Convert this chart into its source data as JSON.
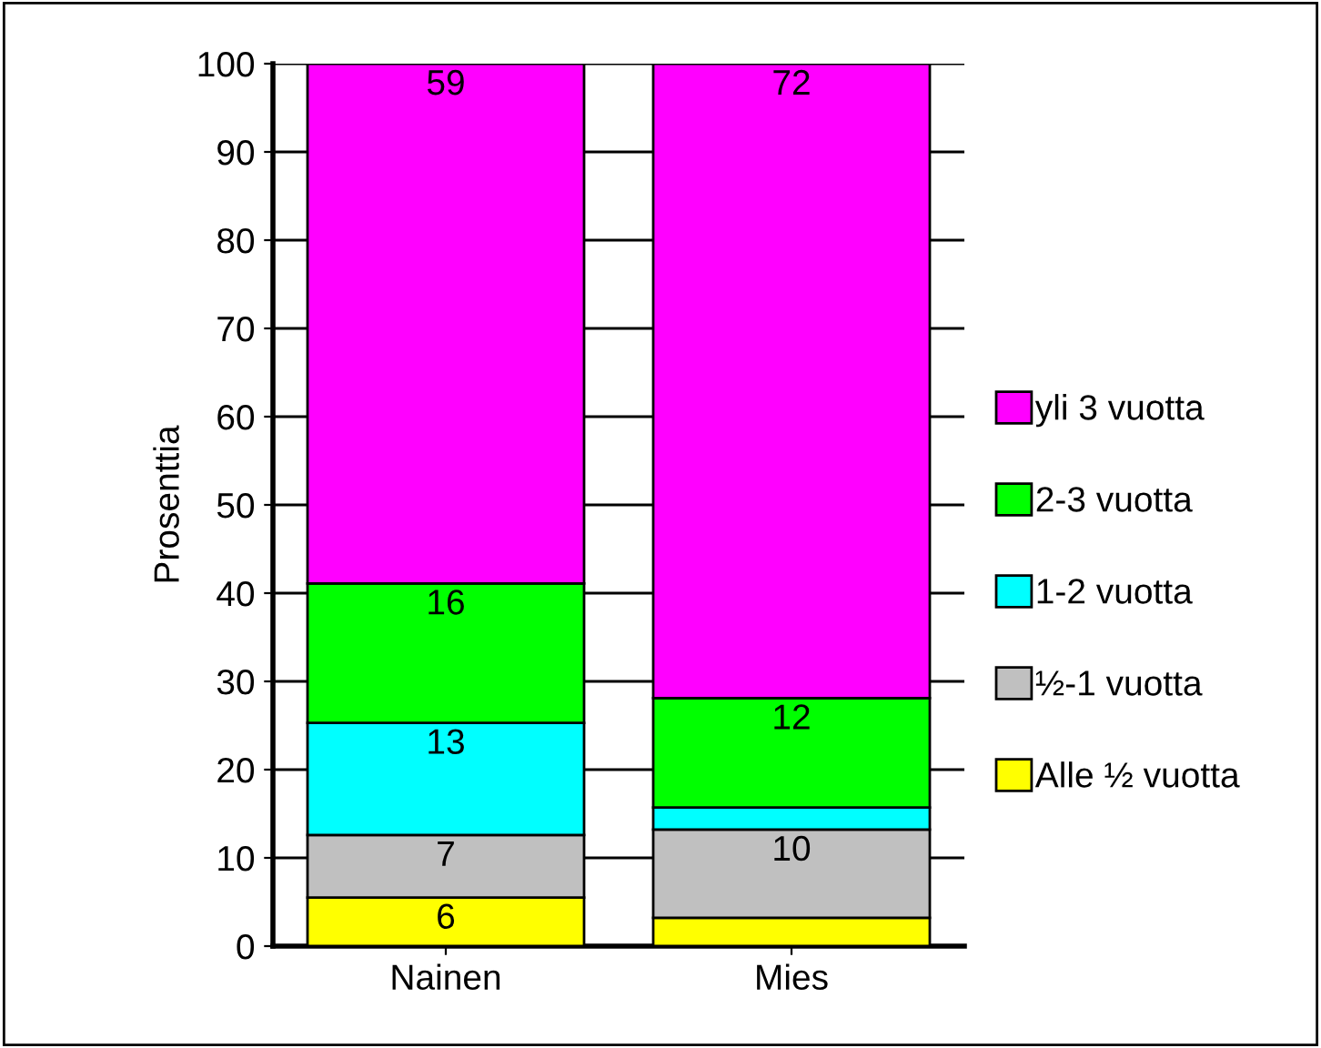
{
  "chart_data": {
    "type": "bar",
    "stacked": true,
    "ylabel": "Prosenttia",
    "categories": [
      "Nainen",
      "Mies"
    ],
    "series": [
      {
        "name": "Alle ½ vuotta",
        "color": "#ffff00",
        "values": [
          5.5,
          3.2
        ],
        "value_labels": [
          "6",
          null
        ]
      },
      {
        "name": "½-1 vuotta",
        "color": "#c0c0c0",
        "values": [
          7.1,
          10.0
        ],
        "value_labels": [
          "7",
          "10"
        ]
      },
      {
        "name": "1-2 vuotta",
        "color": "#00ffff",
        "values": [
          12.7,
          2.5
        ],
        "value_labels": [
          "13",
          null
        ]
      },
      {
        "name": "2-3 vuotta",
        "color": "#00ff00",
        "values": [
          15.8,
          12.4
        ],
        "value_labels": [
          "16",
          "12"
        ]
      },
      {
        "name": "yli 3 vuotta",
        "color": "#ff00ff",
        "values": [
          58.9,
          71.9
        ],
        "value_labels": [
          "59",
          "72"
        ]
      }
    ],
    "ylim": [
      0,
      100
    ],
    "yticks": [
      0,
      10,
      20,
      30,
      40,
      50,
      60,
      70,
      80,
      90,
      100
    ],
    "grid": "y",
    "legend": "right"
  }
}
